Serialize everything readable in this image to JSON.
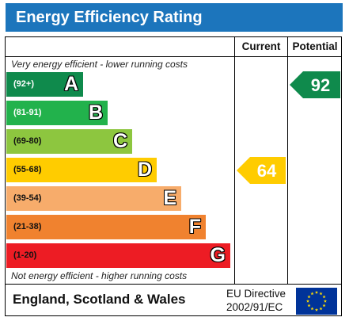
{
  "title": "Energy Efficiency Rating",
  "columns": {
    "current": "Current",
    "potential": "Potential"
  },
  "top_note": "Very energy efficient - lower running costs",
  "bottom_note": "Not energy efficient - higher running costs",
  "footer": {
    "region": "England, Scotland & Wales",
    "directive_line1": "EU Directive",
    "directive_line2": "2002/91/EC"
  },
  "colors": {
    "title_bar": "#1c75bc",
    "A": "#0f8a4c",
    "B": "#22b24c",
    "C": "#8dc63f",
    "D": "#ffcc00",
    "E": "#f7ac6b",
    "F": "#f0822f",
    "G": "#ed1c24",
    "eu_flag": "#003399",
    "eu_stars": "#ffdd00"
  },
  "chart_data": {
    "type": "bar",
    "title": "Energy Efficiency Rating",
    "bands": [
      {
        "letter": "A",
        "range": "(92+)"
      },
      {
        "letter": "B",
        "range": "(81-91)"
      },
      {
        "letter": "C",
        "range": "(69-80)"
      },
      {
        "letter": "D",
        "range": "(55-68)"
      },
      {
        "letter": "E",
        "range": "(39-54)"
      },
      {
        "letter": "F",
        "range": "(21-38)"
      },
      {
        "letter": "G",
        "range": "(1-20)"
      }
    ],
    "current": {
      "value": 64,
      "band": "D"
    },
    "potential": {
      "value": 92,
      "band": "A"
    }
  }
}
